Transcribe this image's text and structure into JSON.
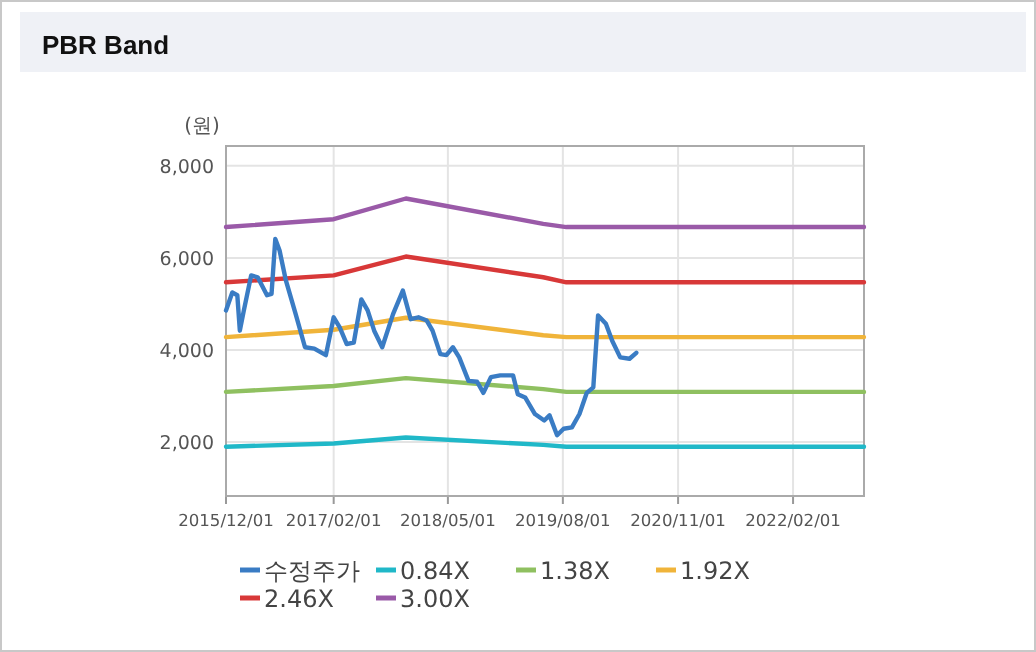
{
  "chart_data": {
    "type": "line",
    "title": "PBR Band",
    "ylabel": "(원)",
    "xlim": [
      "2015-12-01",
      "2022-11-10"
    ],
    "ylim": [
      830,
      8430
    ],
    "xticks": [
      {
        "value": "2015-12-01",
        "label": "2015/12/01"
      },
      {
        "value": "2017-02-01",
        "label": "2017/02/01"
      },
      {
        "value": "2018-05-01",
        "label": "2018/05/01"
      },
      {
        "value": "2019-08-01",
        "label": "2019/08/01"
      },
      {
        "value": "2020-11-01",
        "label": "2020/11/01"
      },
      {
        "value": "2022-02-01",
        "label": "2022/02/01"
      }
    ],
    "yticks": [
      {
        "value": 2000,
        "label": "2,000"
      },
      {
        "value": 4000,
        "label": "4,000"
      },
      {
        "value": 6000,
        "label": "6,000"
      },
      {
        "value": 8000,
        "label": "8,000"
      }
    ],
    "grid": true,
    "legend": "bottom",
    "series": [
      {
        "name": "수정주가",
        "color": "#3a7cc4",
        "x": [
          "2015-12-01",
          "2015-12-26",
          "2016-01-15",
          "2016-01-25",
          "2016-02-10",
          "2016-03-10",
          "2016-04-05",
          "2016-05-12",
          "2016-05-30",
          "2016-06-14",
          "2016-07-01",
          "2016-07-26",
          "2016-09-03",
          "2016-10-10",
          "2016-11-16",
          "2017-01-01",
          "2017-02-01",
          "2017-02-25",
          "2017-03-25",
          "2017-04-22",
          "2017-05-22",
          "2017-06-16",
          "2017-07-12",
          "2017-08-13",
          "2017-09-25",
          "2017-11-03",
          "2017-12-04",
          "2018-01-04",
          "2018-02-06",
          "2018-03-01",
          "2018-04-01",
          "2018-04-25",
          "2018-05-21",
          "2018-06-15",
          "2018-07-22",
          "2018-08-25",
          "2018-09-19",
          "2018-10-19",
          "2018-11-25",
          "2019-01-15",
          "2019-02-03",
          "2019-03-04",
          "2019-04-12",
          "2019-05-19",
          "2019-06-09",
          "2019-07-09",
          "2019-08-04",
          "2019-09-06",
          "2019-10-06",
          "2019-11-04",
          "2019-11-30",
          "2019-12-19",
          "2020-01-19",
          "2020-02-13",
          "2020-03-16",
          "2020-04-22",
          "2020-05-19"
        ],
        "values": [
          4860,
          5250,
          5190,
          4420,
          4860,
          5620,
          5580,
          5190,
          5220,
          6410,
          6160,
          5510,
          4780,
          4060,
          4030,
          3890,
          4710,
          4490,
          4130,
          4160,
          5100,
          4860,
          4420,
          4060,
          4780,
          5290,
          4670,
          4710,
          4640,
          4420,
          3910,
          3890,
          4060,
          3840,
          3330,
          3310,
          3070,
          3410,
          3450,
          3450,
          3040,
          2970,
          2610,
          2470,
          2580,
          2150,
          2290,
          2320,
          2610,
          3070,
          3190,
          4750,
          4570,
          4200,
          3840,
          3810,
          3940
        ]
      },
      {
        "name": "0.84X",
        "color": "#20b8c8",
        "x": [
          "2015-12-01",
          "2017-02-01",
          "2017-11-15",
          "2019-05-15",
          "2019-08-15",
          "2022-11-10"
        ],
        "values": [
          1900,
          1970,
          2100,
          1940,
          1900,
          1900
        ]
      },
      {
        "name": "1.38X",
        "color": "#8fc060",
        "x": [
          "2015-12-01",
          "2017-02-01",
          "2017-11-15",
          "2019-05-15",
          "2019-08-15",
          "2022-11-10"
        ],
        "values": [
          3090,
          3220,
          3390,
          3150,
          3090,
          3090
        ]
      },
      {
        "name": "1.92X",
        "color": "#f0b43a",
        "x": [
          "2015-12-01",
          "2017-02-01",
          "2017-11-15",
          "2019-05-15",
          "2019-08-15",
          "2022-11-10"
        ],
        "values": [
          4280,
          4440,
          4700,
          4320,
          4280,
          4280
        ]
      },
      {
        "name": "2.46X",
        "color": "#d83838",
        "x": [
          "2015-12-01",
          "2017-02-01",
          "2017-11-15",
          "2019-05-15",
          "2019-08-15",
          "2022-11-10"
        ],
        "values": [
          5470,
          5620,
          6030,
          5580,
          5470,
          5470
        ]
      },
      {
        "name": "3.00X",
        "color": "#9a5aa8",
        "x": [
          "2015-12-01",
          "2017-02-01",
          "2017-11-15",
          "2019-05-15",
          "2019-08-15",
          "2022-11-10"
        ],
        "values": [
          6670,
          6840,
          7290,
          6740,
          6670,
          6670
        ]
      }
    ]
  }
}
